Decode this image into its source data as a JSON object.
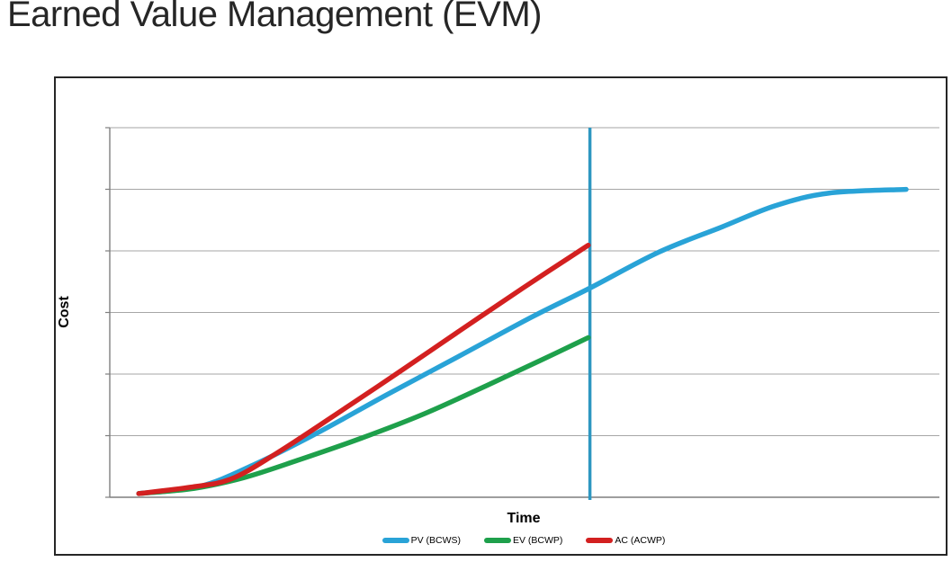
{
  "page": {
    "title": "Earned Value Management (EVM)"
  },
  "chart_data": {
    "type": "line",
    "title": "Earned Value Management (EVM)",
    "xlabel": "Time",
    "ylabel": "Cost",
    "x_range": [
      0,
      1
    ],
    "y_range": [
      0,
      1
    ],
    "x_ticks": [],
    "y_ticks": [],
    "grid": {
      "horizontal_divisions": 6,
      "vertical_gridlines": false
    },
    "legend_position": "bottom",
    "series": [
      {
        "name": "PV (BCWS)",
        "color": "#29A3D7",
        "points": [
          [
            0.035,
            0.01
          ],
          [
            0.108,
            0.029
          ],
          [
            0.173,
            0.087
          ],
          [
            0.249,
            0.172
          ],
          [
            0.336,
            0.279
          ],
          [
            0.423,
            0.383
          ],
          [
            0.51,
            0.488
          ],
          [
            0.58,
            0.566
          ],
          [
            0.663,
            0.663
          ],
          [
            0.739,
            0.731
          ],
          [
            0.804,
            0.789
          ],
          [
            0.869,
            0.823
          ],
          [
            0.962,
            0.833
          ]
        ]
      },
      {
        "name": "EV (BCWP)",
        "color": "#1EA04B",
        "points": [
          [
            0.035,
            0.01
          ],
          [
            0.102,
            0.024
          ],
          [
            0.162,
            0.053
          ],
          [
            0.227,
            0.1
          ],
          [
            0.304,
            0.16
          ],
          [
            0.38,
            0.226
          ],
          [
            0.456,
            0.303
          ],
          [
            0.521,
            0.371
          ],
          [
            0.578,
            0.432
          ]
        ]
      },
      {
        "name": "AC (ACWP)",
        "color": "#D32020",
        "points": [
          [
            0.035,
            0.01
          ],
          [
            0.097,
            0.027
          ],
          [
            0.146,
            0.049
          ],
          [
            0.2,
            0.117
          ],
          [
            0.271,
            0.221
          ],
          [
            0.347,
            0.335
          ],
          [
            0.423,
            0.451
          ],
          [
            0.499,
            0.566
          ],
          [
            0.578,
            0.682
          ]
        ]
      }
    ],
    "annotations": [
      {
        "type": "vline",
        "x": 0.58,
        "color": "#2E97C1"
      }
    ],
    "style_colors": {
      "gridline": "#A6A6A6",
      "axis": "#7F7F7F",
      "border": "#262626",
      "background": "#FFFFFF"
    }
  }
}
